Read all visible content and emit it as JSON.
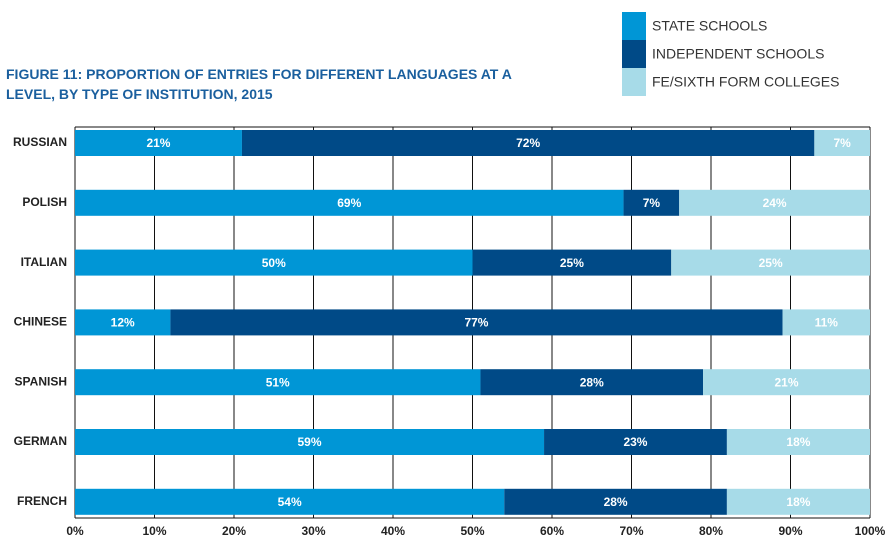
{
  "chart_data": {
    "type": "stacked-bar-horizontal",
    "title": "FIGURE 11: PROPORTION OF ENTRIES FOR DIFFERENT LANGUAGES AT A LEVEL, BY TYPE OF INSTITUTION, 2015",
    "categories": [
      "RUSSIAN",
      "POLISH",
      "ITALIAN",
      "CHINESE",
      "SPANISH",
      "GERMAN",
      "FRENCH"
    ],
    "series": [
      {
        "name": "STATE SCHOOLS",
        "color": "#0096d6",
        "values": [
          21,
          69,
          50,
          12,
          51,
          59,
          54
        ],
        "value_labels": [
          "21%",
          "69%",
          "50%",
          "12%",
          "51%",
          "59%",
          "54%"
        ]
      },
      {
        "name": "INDEPENDENT SCHOOLS",
        "color": "#004a87",
        "values": [
          72,
          7,
          25,
          77,
          28,
          23,
          28
        ],
        "value_labels": [
          "72%",
          "7%",
          "25%",
          "77%",
          "28%",
          "23%",
          "28%"
        ]
      },
      {
        "name": "FE/SIXTH FORM COLLEGES",
        "color": "#a7dbe8",
        "values": [
          7,
          24,
          25,
          11,
          21,
          18,
          18
        ],
        "value_labels": [
          "7%",
          "24%",
          "25%",
          "11%",
          "21%",
          "18%",
          "18%"
        ]
      }
    ],
    "xlim": [
      0,
      100
    ],
    "xticks": [
      {
        "value": 0,
        "label": "0%"
      },
      {
        "value": 10,
        "label": "10%"
      },
      {
        "value": 20,
        "label": "20%"
      },
      {
        "value": 30,
        "label": "30%"
      },
      {
        "value": 40,
        "label": "40%"
      },
      {
        "value": 50,
        "label": "50%"
      },
      {
        "value": 60,
        "label": "60%"
      },
      {
        "value": 70,
        "label": "70%"
      },
      {
        "value": 80,
        "label": "80%"
      },
      {
        "value": 90,
        "label": "90%"
      },
      {
        "value": 100,
        "label": "100%"
      }
    ],
    "grid": true,
    "legend": "top-right"
  }
}
